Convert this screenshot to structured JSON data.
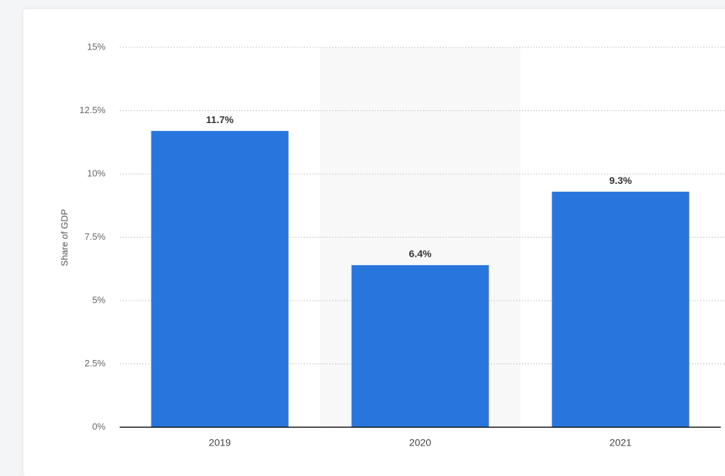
{
  "chart_data": {
    "type": "bar",
    "y_label": "Share of GDP",
    "categories": [
      "2019",
      "2020",
      "2021"
    ],
    "values": [
      11.7,
      6.4,
      9.3
    ],
    "value_labels": [
      "11.7%",
      "6.4%",
      "9.3%"
    ],
    "color": "#2876dd",
    "ylim": [
      0,
      15
    ],
    "yticks": [
      {
        "value": 0,
        "label": "0%"
      },
      {
        "value": 2.5,
        "label": "2.5%"
      },
      {
        "value": 5,
        "label": "5%"
      },
      {
        "value": 7.5,
        "label": "7.5%"
      },
      {
        "value": 10,
        "label": "10%"
      },
      {
        "value": 12.5,
        "label": "12.5%"
      },
      {
        "value": 15,
        "label": "15%"
      }
    ],
    "grid": true
  }
}
